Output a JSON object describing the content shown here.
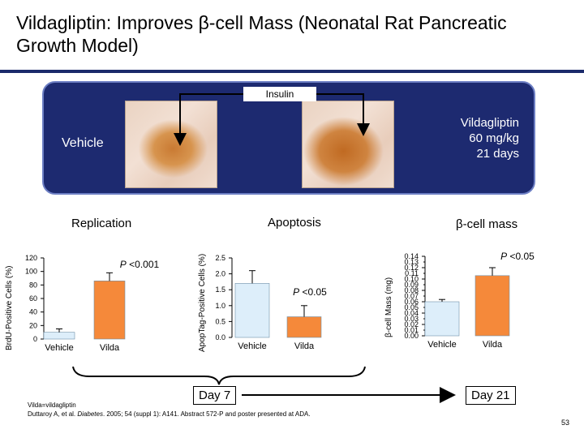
{
  "title": "Vildagliptin: Improves β-cell Mass (Neonatal Rat Pancreatic Growth Model)",
  "panel": {
    "insulin_label": "Insulin",
    "vehicle_label": "Vehicle",
    "vilda_line1": "Vildagliptin",
    "vilda_line2": "60 mg/kg",
    "vilda_line3": "21 days"
  },
  "colors": {
    "vehicle": "#ddeefa",
    "vilda": "#f5893a",
    "panel_bg": "#1d2a70",
    "rule": "#1b2a6b"
  },
  "chart_data": [
    {
      "type": "bar",
      "title": "Replication",
      "ylabel": "BrdU-Positive Cells (%)",
      "categories": [
        "Vehicle",
        "Vilda"
      ],
      "values": [
        10,
        86
      ],
      "errors": [
        5,
        12
      ],
      "ylim": [
        0,
        120
      ],
      "yticks": [
        "0",
        "20",
        "40",
        "60",
        "80",
        "100",
        "120"
      ],
      "annotation": "P <0.001"
    },
    {
      "type": "bar",
      "title": "Apoptosis",
      "ylabel": "ApopTag-Positive Cells (%)",
      "categories": [
        "Vehicle",
        "Vilda"
      ],
      "values": [
        1.7,
        0.65
      ],
      "errors": [
        0.4,
        0.35
      ],
      "ylim": [
        0,
        2.5
      ],
      "yticks": [
        "0.0",
        "0.5",
        "1.0",
        "1.5",
        "2.0",
        "2.5"
      ],
      "annotation": "P <0.05"
    },
    {
      "type": "bar",
      "title": "β-cell mass",
      "ylabel": "β-cell Mass (mg)",
      "categories": [
        "Vehicle",
        "Vilda"
      ],
      "values": [
        0.06,
        0.106
      ],
      "errors": [
        0.004,
        0.014
      ],
      "ylim": [
        0,
        0.14
      ],
      "yticks": [
        "0.00",
        "0.02",
        "0.04",
        "0.06",
        "0.08",
        "0.10",
        "0.12",
        "0.14"
      ],
      "yticks_minor": [
        "0.01",
        "0.03",
        "0.05",
        "0.07",
        "0.09",
        "0.11",
        "0.13"
      ],
      "annotation": "P <0.05"
    }
  ],
  "day7": "Day 7",
  "day21": "Day 21",
  "footnote_line1": "Vilda=vildagliptin",
  "footnote_line2_a": "Duttaroy A, et al. ",
  "footnote_line2_b": "Diabetes",
  "footnote_line2_c": ". 2005; 54 (suppl 1): A141. Abstract 572-P and poster presented at ADA.",
  "page_number": "53"
}
